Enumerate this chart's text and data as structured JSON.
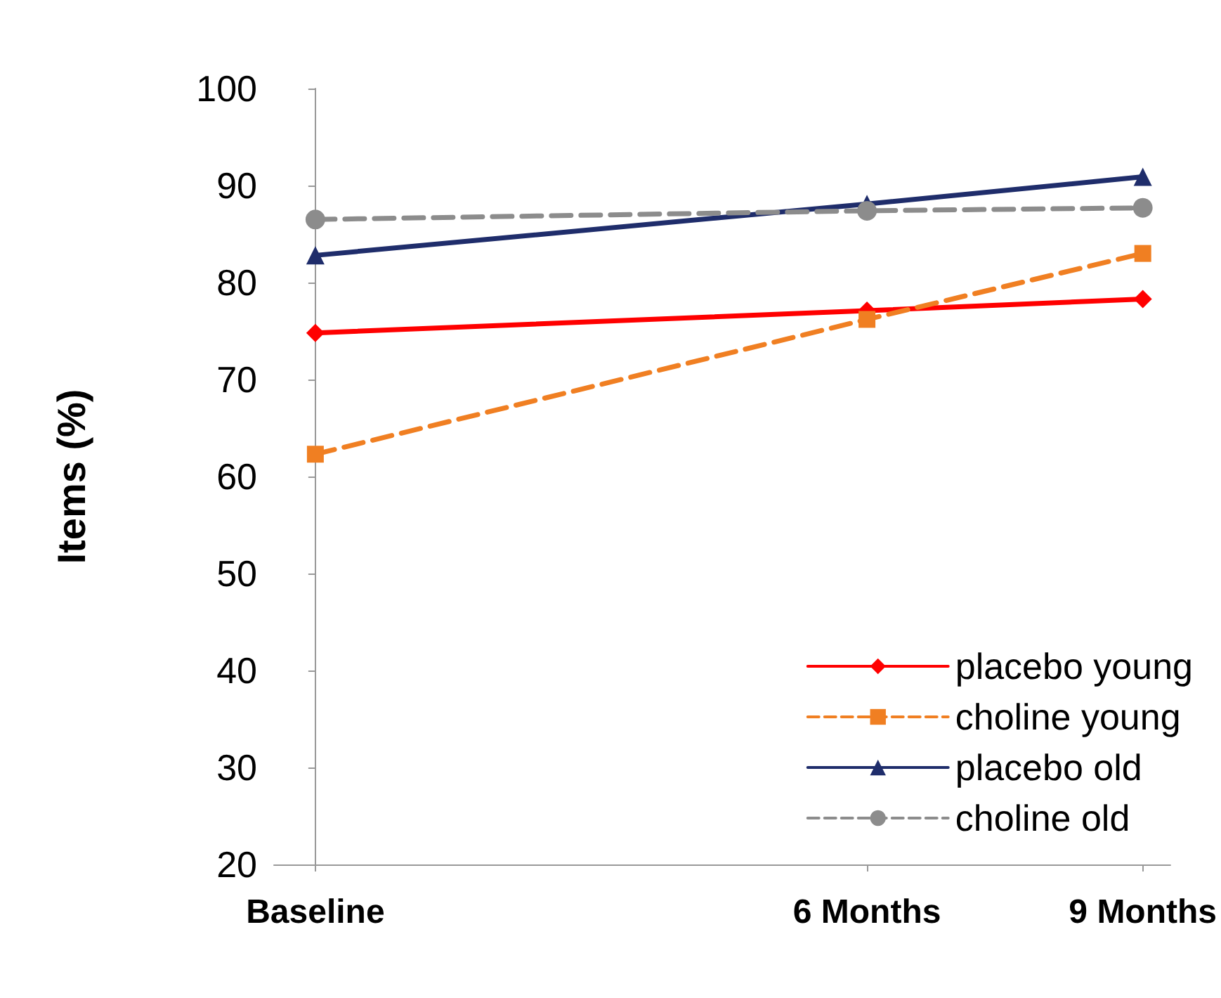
{
  "chart_data": {
    "type": "line",
    "ylabel": "Items (%)",
    "x": [
      0,
      6,
      9
    ],
    "xlim": [
      -0.45,
      9.3
    ],
    "xticks": [
      {
        "value": 0,
        "label": "Baseline"
      },
      {
        "value": 6,
        "label": "6 Months"
      },
      {
        "value": 9,
        "label": "9 Months"
      }
    ],
    "ylim": [
      20,
      100
    ],
    "yticks": [
      20,
      30,
      40,
      50,
      60,
      70,
      80,
      90,
      100
    ],
    "grid": false,
    "legend": "bottom right",
    "series": [
      {
        "name": "placebo young",
        "color": "#ff0000",
        "marker": "diamond",
        "line_style": "solid",
        "values": [
          74.8,
          77.1,
          78.3
        ]
      },
      {
        "name": "choline young",
        "color": "#f07f22",
        "marker": "square",
        "line_style": "dashed",
        "values": [
          62.3,
          76.2,
          83.0
        ]
      },
      {
        "name": "placebo old",
        "color": "#1f2d6b",
        "marker": "triangle",
        "line_style": "solid",
        "values": [
          82.8,
          88.1,
          90.9
        ]
      },
      {
        "name": "choline old",
        "color": "#8c8c8c",
        "marker": "circle",
        "line_style": "dashed",
        "values": [
          86.5,
          87.4,
          87.7
        ]
      }
    ]
  }
}
